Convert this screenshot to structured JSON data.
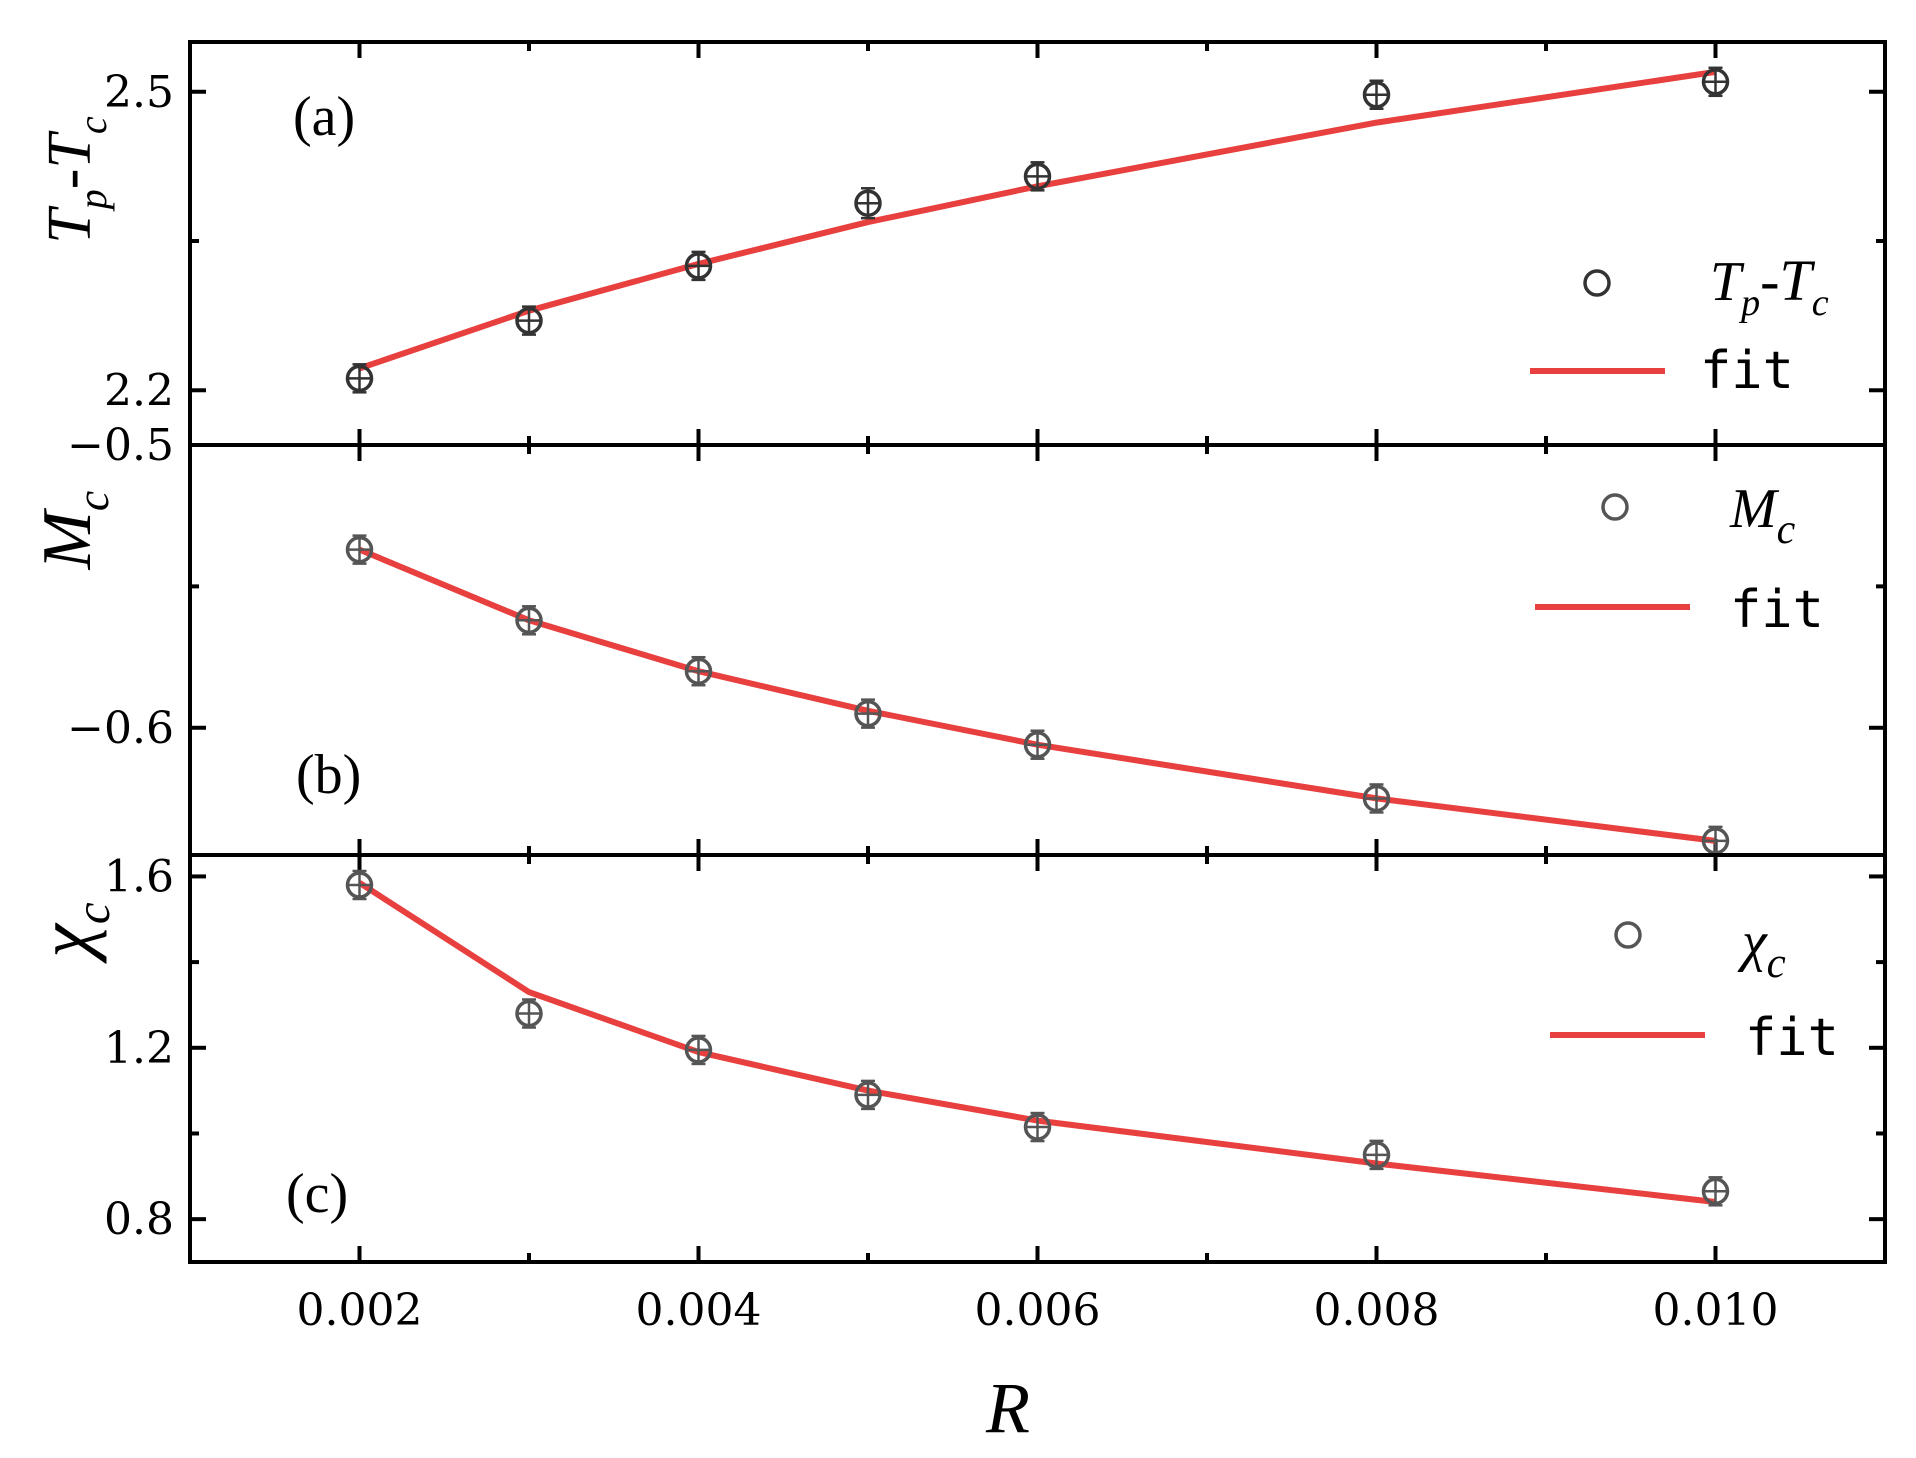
{
  "chart_data": [
    {
      "type": "scatter",
      "panel_label": "(a)",
      "ylabel": {
        "main": "T",
        "sub1": "p",
        "dash": "-",
        "main2": "T",
        "sub2": "c"
      },
      "x": [
        0.002,
        0.003,
        0.004,
        0.005,
        0.006,
        0.008,
        0.01
      ],
      "xlim": [
        0.001,
        0.011
      ],
      "ylim": [
        2.145,
        2.55
      ],
      "yticks": [
        2.2,
        2.5
      ],
      "ytick_labels": [
        "2.2",
        "2.5"
      ],
      "series": [
        {
          "name": "Tp-Tc",
          "kind": "points",
          "values": [
            2.212,
            2.27,
            2.325,
            2.388,
            2.415,
            2.497,
            2.51
          ],
          "errors": [
            0.008,
            0.008,
            0.008,
            0.015,
            0.008,
            0.008,
            0.008
          ],
          "color": "#333333"
        },
        {
          "name": "fit",
          "kind": "line",
          "values": [
            2.222,
            2.28,
            2.327,
            2.369,
            2.405,
            2.469,
            2.52
          ],
          "color": "#e8403f"
        }
      ],
      "legend": {
        "position": "right",
        "points_label": {
          "main": "T",
          "sub1": "p",
          "dash": "-",
          "main2": "T",
          "sub2": "c"
        },
        "line_label": "fit"
      }
    },
    {
      "type": "scatter",
      "panel_label": "(b)",
      "ylabel": {
        "main": "M",
        "sub1": "c"
      },
      "x": [
        0.002,
        0.003,
        0.004,
        0.005,
        0.006,
        0.008,
        0.01
      ],
      "xlim": [
        0.001,
        0.011
      ],
      "ylim": [
        -0.645,
        -0.5
      ],
      "yticks": [
        -0.6,
        -0.5
      ],
      "ytick_labels": [
        "−0.6",
        "−0.5"
      ],
      "series": [
        {
          "name": "Mc",
          "kind": "points",
          "values": [
            -0.537,
            -0.562,
            -0.58,
            -0.595,
            -0.606,
            -0.625,
            -0.64
          ],
          "errors": [
            0.004,
            0.004,
            0.004,
            0.004,
            0.004,
            0.004,
            0.004
          ],
          "color": "#555555"
        },
        {
          "name": "fit",
          "kind": "line",
          "values": [
            -0.537,
            -0.562,
            -0.58,
            -0.594,
            -0.606,
            -0.625,
            -0.64
          ],
          "color": "#e8403f"
        }
      ],
      "legend": {
        "position": "top-right",
        "points_label": {
          "main": "M",
          "sub1": "c"
        },
        "line_label": "fit"
      }
    },
    {
      "type": "scatter",
      "panel_label": "(c)",
      "ylabel": {
        "main": "χ",
        "sub1": "c"
      },
      "x": [
        0.002,
        0.003,
        0.004,
        0.005,
        0.006,
        0.008,
        0.01
      ],
      "xlim": [
        0.001,
        0.011
      ],
      "ylim": [
        0.7,
        1.65
      ],
      "yticks": [
        0.8,
        1.2,
        1.6
      ],
      "ytick_labels": [
        "0.8",
        "1.2",
        "1.6"
      ],
      "xticks": [
        0.002,
        0.004,
        0.006,
        0.008,
        0.01
      ],
      "xtick_labels": [
        "0.002",
        "0.004",
        "0.006",
        "0.008",
        "0.010"
      ],
      "xlabel": "R",
      "series": [
        {
          "name": "χc",
          "kind": "points",
          "values": [
            1.58,
            1.28,
            1.195,
            1.09,
            1.015,
            0.95,
            0.865
          ],
          "errors": [
            0.01,
            0.01,
            0.01,
            0.01,
            0.01,
            0.01,
            0.01
          ],
          "color": "#555555"
        },
        {
          "name": "fit",
          "kind": "line",
          "values": [
            1.585,
            1.33,
            1.19,
            1.1,
            1.03,
            0.93,
            0.84
          ],
          "color": "#e8403f"
        }
      ],
      "legend": {
        "position": "right",
        "points_label": {
          "main": "χ",
          "sub1": "c"
        },
        "line_label": "fit"
      }
    }
  ]
}
